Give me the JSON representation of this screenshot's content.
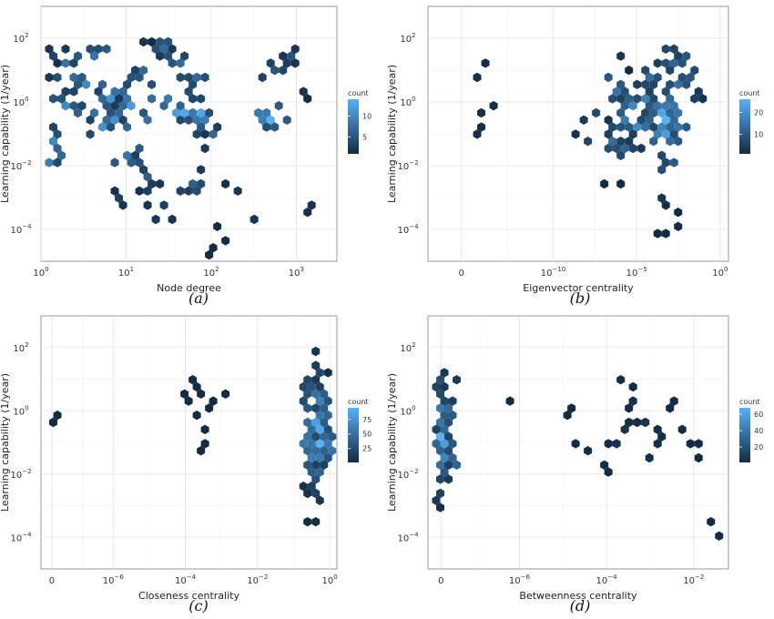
{
  "figure": {
    "panel_tags": [
      "(a)",
      "(b)",
      "(c)",
      "(d)"
    ],
    "colors": {
      "low": "#132b43",
      "high": "#56b1f7",
      "panel_border": "#9a9a9a",
      "grid": "#e3e3e3"
    }
  },
  "chart_data": [
    {
      "type": "heatmap",
      "subtype": "hexbin",
      "panel": "(a)",
      "xlabel": "Node degree",
      "ylabel": "Learning capability (1/year)",
      "x_scale": "log10",
      "y_scale": "log10",
      "xlim": [
        1,
        3000
      ],
      "ylim": [
        1e-05,
        1000
      ],
      "x_ticks": [
        {
          "value": 1,
          "base": "10",
          "exp": "0"
        },
        {
          "value": 10,
          "base": "10",
          "exp": "1"
        },
        {
          "value": 100,
          "base": "10",
          "exp": "2"
        },
        {
          "value": 1000,
          "base": "10",
          "exp": "3"
        }
      ],
      "y_ticks": [
        {
          "value": 0.0001,
          "base": "10",
          "exp": "−4"
        },
        {
          "value": 0.01,
          "base": "10",
          "exp": "−2"
        },
        {
          "value": 1,
          "base": "10",
          "exp": "0"
        },
        {
          "value": 100,
          "base": "10",
          "exp": "2"
        }
      ],
      "legend": {
        "title": "count",
        "ticks": [
          5,
          10
        ],
        "range": [
          1,
          14
        ],
        "placement": "right"
      },
      "grid": true,
      "x": [
        2.7,
        1.7,
        1.9,
        1.6,
        1.1,
        0.9,
        0.85,
        0.7,
        0.5,
        0.3,
        0.1,
        -0.1,
        -0.2,
        0.1,
        0.3,
        0.6,
        0.8,
        1.0,
        1.2,
        1.4,
        1.6,
        1.8,
        2.0,
        1.3,
        1.8,
        2.7,
        2.9,
        0.1,
        0.0,
        0.95,
        1.25,
        1.45,
        1.7,
        2.35,
        2.55,
        3.05,
        3.2,
        1.2,
        2.0,
        2.1
      ],
      "y": [
        -0.5,
        -0.3,
        -0.4,
        -0.25,
        -0.2,
        -0.6,
        0.2,
        -0.7,
        0.5,
        -0.1,
        -1.2,
        0.7,
        -1.5,
        -1.8,
        1.2,
        1.4,
        0.0,
        -1.6,
        0.9,
        1.6,
        1.3,
        0.8,
        -1.0,
        -2.3,
        -2.5,
        1.0,
        1.5,
        1.5,
        0.4,
        -3.0,
        -2.9,
        -3.3,
        -2.7,
        -2.8,
        -3.6,
        0.3,
        -3.3,
        1.9,
        -4.6,
        -4.0
      ],
      "counts": [
        14,
        13,
        13,
        12,
        12,
        11,
        11,
        11,
        10,
        10,
        10,
        9,
        9,
        9,
        8,
        8,
        8,
        8,
        7,
        7,
        7,
        7,
        7,
        6,
        6,
        5,
        5,
        4,
        4,
        3,
        3,
        3,
        3,
        2,
        2,
        2,
        2,
        2,
        1,
        1
      ],
      "seed": 11
    },
    {
      "type": "heatmap",
      "subtype": "hexbin",
      "panel": "(b)",
      "xlabel": "Eigenvector centrality",
      "ylabel": "Learning capability (1/year)",
      "x_scale": "log10 (0 plotted at left)",
      "y_scale": "log10",
      "xlim": [
        -17.5,
        0.5
      ],
      "ylim": [
        1e-05,
        1000
      ],
      "x_ticks": [
        {
          "value": -15.5,
          "base": "0",
          "exp": ""
        },
        {
          "value": -10,
          "base": "10",
          "exp": "−10"
        },
        {
          "value": -5,
          "base": "10",
          "exp": "−5"
        },
        {
          "value": 0,
          "base": "10",
          "exp": "0"
        }
      ],
      "y_ticks": [
        {
          "value": 0.0001,
          "base": "10",
          "exp": "−4"
        },
        {
          "value": 0.01,
          "base": "10",
          "exp": "−2"
        },
        {
          "value": 1,
          "base": "10",
          "exp": "0"
        },
        {
          "value": 100,
          "base": "10",
          "exp": "2"
        }
      ],
      "legend": {
        "title": "count",
        "ticks": [
          10,
          20
        ],
        "range": [
          1,
          26
        ],
        "placement": "right"
      },
      "grid": true,
      "x": [
        -3.3,
        -3.5,
        -3.1,
        -3.8,
        -4.0,
        -5.0,
        -5.3,
        -4.6,
        -5.8,
        -6.2,
        -2.7,
        -2.5,
        -6.4,
        -4.3,
        -3.0,
        -5.5,
        -2.9,
        -2.2,
        -7.5,
        -8.0,
        -1.4,
        -3.5,
        -6.0,
        -14.5,
        -14.3,
        -14.6,
        -3.1,
        -2.3,
        -6.2
      ],
      "y": [
        -0.6,
        -0.3,
        -0.9,
        -0.1,
        -0.5,
        -0.8,
        -0.2,
        0.2,
        -0.6,
        0.3,
        -0.4,
        0.5,
        -1.2,
        0.7,
        1.3,
        -1.5,
        -1.8,
        1.5,
        -0.3,
        -1.2,
        0.0,
        -3.0,
        1.5,
        0.8,
        -0.3,
        -1.0,
        -4.2,
        -3.5,
        -2.5
      ],
      "counts": [
        26,
        24,
        22,
        21,
        20,
        19,
        18,
        17,
        16,
        15,
        15,
        14,
        13,
        13,
        12,
        12,
        10,
        9,
        7,
        6,
        5,
        3,
        3,
        2,
        2,
        2,
        1,
        1,
        1
      ],
      "seed": 23
    },
    {
      "type": "heatmap",
      "subtype": "hexbin",
      "panel": "(c)",
      "xlabel": "Closeness centrality",
      "ylabel": "Learning capability (1/year)",
      "x_scale": "log10 (0 plotted at left)",
      "y_scale": "log10",
      "xlim": [
        -8.0,
        0.2
      ],
      "ylim": [
        1e-05,
        1000
      ],
      "x_ticks": [
        {
          "value": -7.7,
          "base": "0",
          "exp": ""
        },
        {
          "value": -6,
          "base": "10",
          "exp": "−6"
        },
        {
          "value": -4,
          "base": "10",
          "exp": "−4"
        },
        {
          "value": -2,
          "base": "10",
          "exp": "−2"
        },
        {
          "value": 0,
          "base": "10",
          "exp": "0"
        }
      ],
      "y_ticks": [
        {
          "value": 0.0001,
          "base": "10",
          "exp": "−4"
        },
        {
          "value": 0.01,
          "base": "10",
          "exp": "−2"
        },
        {
          "value": 1,
          "base": "10",
          "exp": "0"
        },
        {
          "value": 100,
          "base": "10",
          "exp": "2"
        }
      ],
      "legend": {
        "title": "count",
        "ticks": [
          25,
          50,
          75
        ],
        "range": [
          1,
          95
        ],
        "placement": "right"
      },
      "grid": true,
      "x": [
        -0.35,
        -0.35,
        -0.35,
        -0.35,
        -0.35,
        -0.35,
        -0.35,
        -0.35,
        -0.35,
        -0.35,
        -0.35,
        -0.35,
        -0.35,
        -0.35,
        -0.35,
        -0.35,
        -0.35,
        -3.7,
        -3.5,
        -3.3,
        -3.6,
        -3.4,
        -3.6,
        -3.8,
        -7.7
      ],
      "y": [
        -1.0,
        -0.7,
        -0.4,
        -1.3,
        -0.1,
        0.2,
        -1.6,
        0.5,
        -1.9,
        0.8,
        -2.2,
        1.1,
        -2.5,
        1.4,
        -2.9,
        1.8,
        -3.6,
        0.8,
        0.5,
        0.2,
        -0.2,
        -1.0,
        -1.2,
        0.3,
        -0.4
      ],
      "counts": [
        95,
        90,
        82,
        78,
        70,
        62,
        58,
        50,
        42,
        36,
        28,
        22,
        18,
        14,
        10,
        6,
        3,
        2,
        2,
        2,
        1,
        1,
        1,
        1,
        1
      ],
      "seed": 37
    },
    {
      "type": "heatmap",
      "subtype": "hexbin",
      "panel": "(d)",
      "xlabel": "Betweenness centrality",
      "ylabel": "Learning capability (1/year)",
      "x_scale": "log10 (0 plotted at left)",
      "y_scale": "log10",
      "xlim": [
        -8.1,
        -1.2
      ],
      "ylim": [
        1e-05,
        1000
      ],
      "x_ticks": [
        {
          "value": -7.8,
          "base": "0",
          "exp": ""
        },
        {
          "value": -6,
          "base": "10",
          "exp": "−6"
        },
        {
          "value": -4,
          "base": "10",
          "exp": "−4"
        },
        {
          "value": -2,
          "base": "10",
          "exp": "−2"
        }
      ],
      "y_ticks": [
        {
          "value": 0.0001,
          "base": "10",
          "exp": "−4"
        },
        {
          "value": 0.01,
          "base": "10",
          "exp": "−2"
        },
        {
          "value": 1,
          "base": "10",
          "exp": "0"
        },
        {
          "value": 100,
          "base": "10",
          "exp": "2"
        }
      ],
      "legend": {
        "title": "count",
        "ticks": [
          20,
          40,
          60
        ],
        "range": [
          1,
          68
        ],
        "placement": "right"
      },
      "grid": true,
      "x": [
        -7.8,
        -7.8,
        -7.8,
        -7.8,
        -7.8,
        -7.8,
        -7.8,
        -7.8,
        -7.8,
        -7.8,
        -7.8,
        -7.8,
        -7.8,
        -3.5,
        -3.2,
        -3.8,
        -3.0,
        -3.4,
        -2.8,
        -4.0,
        -3.6,
        -2.6,
        -4.4,
        -2.2,
        -4.8,
        -1.8,
        -6.2,
        -1.5
      ],
      "y": [
        -0.8,
        -0.5,
        -1.1,
        -0.2,
        -1.4,
        0.1,
        -1.7,
        0.5,
        -2.0,
        0.9,
        -2.5,
        1.3,
        -3.0,
        -0.7,
        -0.3,
        -1.0,
        -1.5,
        0.3,
        -0.9,
        -1.8,
        0.9,
        0.1,
        -1.2,
        -0.6,
        0.0,
        -1.4,
        0.3,
        -4.0
      ],
      "counts": [
        68,
        62,
        58,
        52,
        46,
        40,
        34,
        30,
        24,
        18,
        12,
        8,
        4,
        6,
        5,
        5,
        4,
        4,
        3,
        3,
        3,
        2,
        2,
        2,
        1,
        1,
        1,
        1
      ],
      "seed": 53
    }
  ]
}
